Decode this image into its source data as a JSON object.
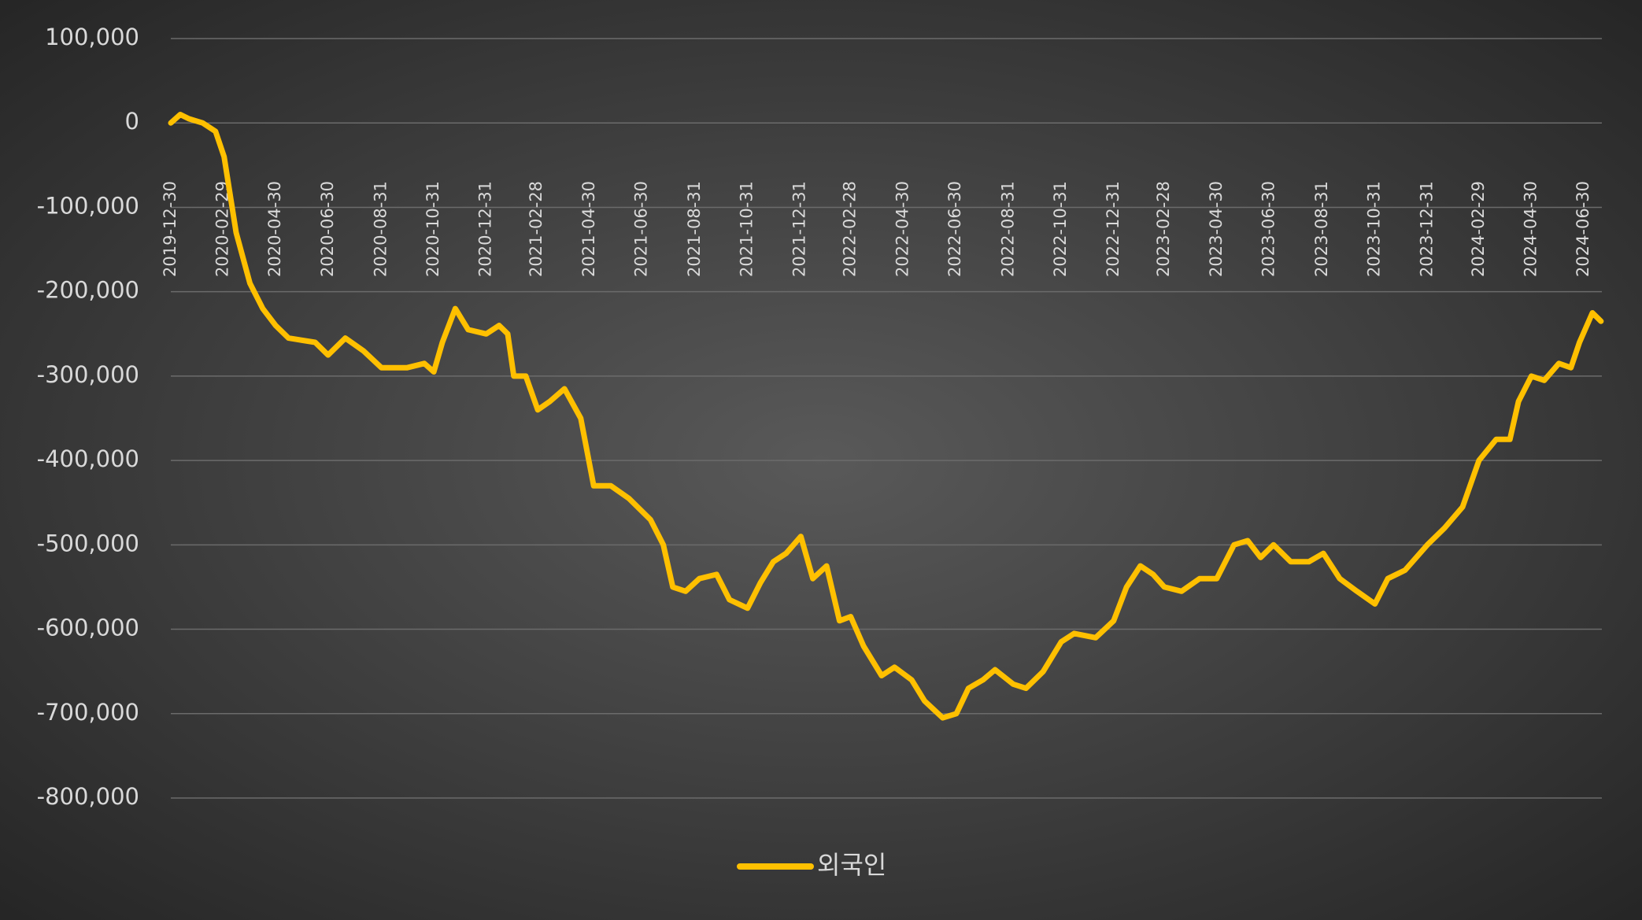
{
  "chart_data": {
    "type": "line",
    "x": [
      "2019-12-30",
      "2020-01-10",
      "2020-01-20",
      "2020-02-05",
      "2020-02-20",
      "2020-03-01",
      "2020-03-15",
      "2020-03-31",
      "2020-04-15",
      "2020-04-30",
      "2020-05-15",
      "2020-06-15",
      "2020-06-30",
      "2020-07-20",
      "2020-08-10",
      "2020-08-31",
      "2020-09-30",
      "2020-10-20",
      "2020-10-31",
      "2020-11-10",
      "2020-11-25",
      "2020-12-10",
      "2020-12-31",
      "2021-01-15",
      "2021-01-25",
      "2021-02-01",
      "2021-02-15",
      "2021-03-01",
      "2021-03-15",
      "2021-04-01",
      "2021-04-20",
      "2021-05-05",
      "2021-05-25",
      "2021-06-15",
      "2021-07-10",
      "2021-07-25",
      "2021-08-05",
      "2021-08-20",
      "2021-09-05",
      "2021-09-25",
      "2021-10-10",
      "2021-10-31",
      "2021-11-15",
      "2021-11-30",
      "2021-12-15",
      "2022-01-01",
      "2022-01-15",
      "2022-01-31",
      "2022-02-15",
      "2022-02-28",
      "2022-03-15",
      "2022-04-05",
      "2022-04-20",
      "2022-05-10",
      "2022-05-25",
      "2022-06-15",
      "2022-07-01",
      "2022-07-15",
      "2022-08-01",
      "2022-08-15",
      "2022-09-05",
      "2022-09-20",
      "2022-10-10",
      "2022-10-31",
      "2022-11-15",
      "2022-12-10",
      "2022-12-31",
      "2023-01-15",
      "2023-01-31",
      "2023-02-15",
      "2023-02-28",
      "2023-03-20",
      "2023-04-10",
      "2023-04-30",
      "2023-05-20",
      "2023-06-05",
      "2023-06-20",
      "2023-07-05",
      "2023-07-25",
      "2023-08-15",
      "2023-09-01",
      "2023-09-20",
      "2023-10-10",
      "2023-10-31",
      "2023-11-15",
      "2023-12-05",
      "2023-12-31",
      "2024-01-20",
      "2024-02-10",
      "2024-02-29",
      "2024-03-20",
      "2024-04-05",
      "2024-04-15",
      "2024-04-30",
      "2024-05-15",
      "2024-06-01",
      "2024-06-15",
      "2024-06-25",
      "2024-07-10",
      "2024-07-20"
    ],
    "series": [
      {
        "name": "외국인",
        "color": "#FFC000",
        "values": [
          0,
          10000,
          5000,
          0,
          -10000,
          -40000,
          -130000,
          -190000,
          -220000,
          -240000,
          -255000,
          -260000,
          -275000,
          -255000,
          -270000,
          -290000,
          -290000,
          -285000,
          -295000,
          -260000,
          -220000,
          -245000,
          -250000,
          -240000,
          -250000,
          -300000,
          -300000,
          -340000,
          -330000,
          -315000,
          -350000,
          -430000,
          -430000,
          -445000,
          -470000,
          -500000,
          -550000,
          -555000,
          -540000,
          -535000,
          -565000,
          -575000,
          -545000,
          -520000,
          -510000,
          -490000,
          -540000,
          -525000,
          -590000,
          -585000,
          -620000,
          -655000,
          -645000,
          -660000,
          -685000,
          -705000,
          -700000,
          -670000,
          -660000,
          -648000,
          -665000,
          -670000,
          -650000,
          -615000,
          -605000,
          -610000,
          -590000,
          -550000,
          -525000,
          -535000,
          -550000,
          -555000,
          -540000,
          -540000,
          -500000,
          -495000,
          -515000,
          -500000,
          -520000,
          -520000,
          -510000,
          -540000,
          -555000,
          -570000,
          -540000,
          -530000,
          -500000,
          -480000,
          -455000,
          -400000,
          -375000,
          -375000,
          -330000,
          -300000,
          -305000,
          -285000,
          -290000,
          -260000,
          -225000,
          -235000
        ]
      }
    ],
    "xlim": [
      "2019-12-30",
      "2024-07-21"
    ],
    "xticks": [
      "2019-12-30",
      "2020-02-29",
      "2020-04-30",
      "2020-06-30",
      "2020-08-31",
      "2020-10-31",
      "2020-12-31",
      "2021-02-28",
      "2021-04-30",
      "2021-06-30",
      "2021-08-31",
      "2021-10-31",
      "2021-12-31",
      "2022-02-28",
      "2022-04-30",
      "2022-06-30",
      "2022-08-31",
      "2022-10-31",
      "2022-12-31",
      "2023-02-28",
      "2023-04-30",
      "2023-06-30",
      "2023-08-31",
      "2023-10-31",
      "2023-12-31",
      "2024-02-29",
      "2024-04-30",
      "2024-06-30"
    ],
    "ylim": [
      -800000,
      100000
    ],
    "yticks": [
      {
        "value": 100000,
        "label": "100,000"
      },
      0,
      {
        "value": -100000,
        "label": "-100,000"
      },
      {
        "value": -200000,
        "label": "-200,000"
      },
      {
        "value": -300000,
        "label": "-300,000"
      },
      {
        "value": -400000,
        "label": "-400,000"
      },
      {
        "value": -500000,
        "label": "-500,000"
      },
      {
        "value": -600000,
        "label": "-600,000"
      },
      {
        "value": -700000,
        "label": "-700,000"
      },
      {
        "value": -800000,
        "label": "-800,000"
      }
    ],
    "grid": true,
    "legend": "bottom"
  }
}
